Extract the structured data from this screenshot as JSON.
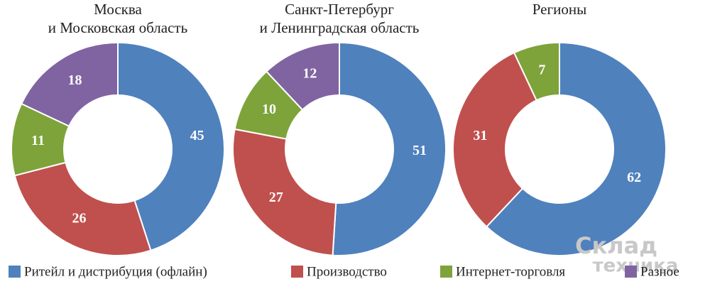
{
  "chart_data": [
    {
      "type": "donut",
      "title": [
        "Москва",
        "и Московская область"
      ],
      "values": [
        45,
        26,
        11,
        18
      ]
    },
    {
      "type": "donut",
      "title": [
        "Санкт-Петербург",
        "и Ленинградская область"
      ],
      "values": [
        51,
        27,
        10,
        12
      ]
    },
    {
      "type": "donut",
      "title": [
        "Регионы"
      ],
      "values": [
        62,
        31,
        7,
        null
      ]
    }
  ],
  "legend": {
    "categories": [
      "Ритейл и дистрибуция (офлайн)",
      "Производство",
      "Интернет-торговля",
      "Разное"
    ],
    "colors": [
      "#4f81bd",
      "#c0504d",
      "#7ea33a",
      "#8064a2"
    ]
  },
  "watermark": [
    "Склад",
    "техника"
  ]
}
